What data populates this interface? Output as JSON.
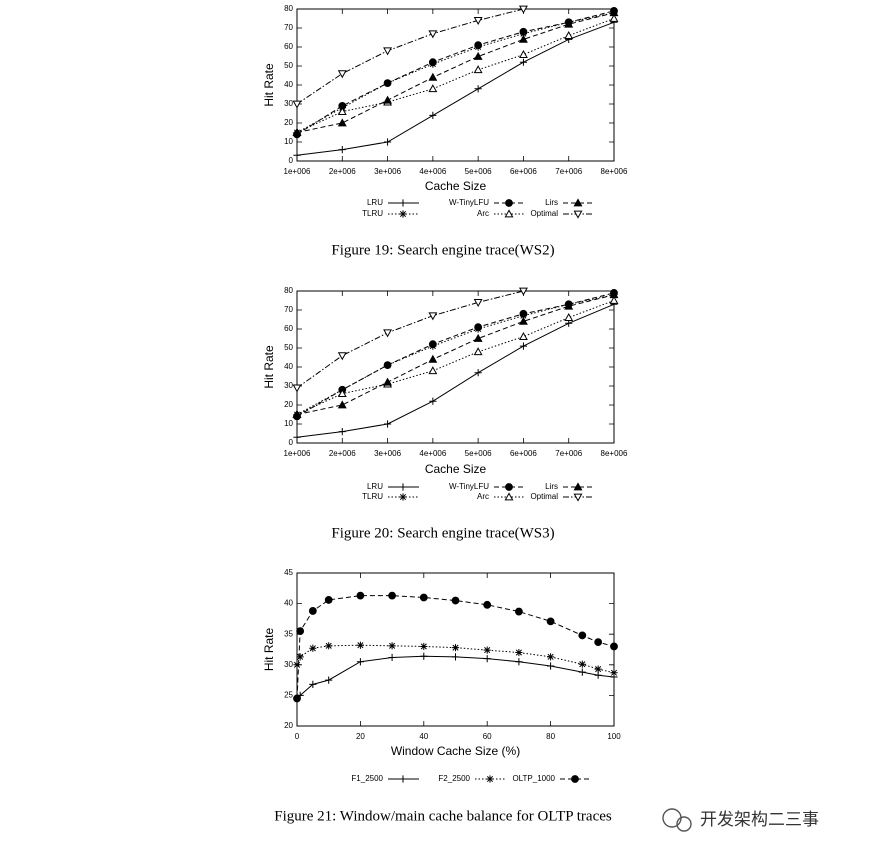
{
  "chart_data": [
    {
      "type": "line",
      "caption": "Figure 19: Search engine trace(WS2)",
      "xlabel": "Cache Size",
      "ylabel": "Hit Rate",
      "x": [
        1000000,
        2000000,
        3000000,
        4000000,
        5000000,
        6000000,
        7000000,
        8000000
      ],
      "xlim": [
        1000000,
        8000000
      ],
      "xticks": [
        {
          "value": 1000000,
          "label": "1e+006"
        },
        {
          "value": 2000000,
          "label": "2e+006"
        },
        {
          "value": 3000000,
          "label": "3e+006"
        },
        {
          "value": 4000000,
          "label": "4e+006"
        },
        {
          "value": 5000000,
          "label": "5e+006"
        },
        {
          "value": 6000000,
          "label": "6e+006"
        },
        {
          "value": 7000000,
          "label": "7e+006"
        },
        {
          "value": 8000000,
          "label": "8e+006"
        }
      ],
      "ylim": [
        0,
        80
      ],
      "yticks": [
        0,
        10,
        20,
        30,
        40,
        50,
        60,
        70,
        80
      ],
      "series": [
        {
          "name": "LRU",
          "color": "#000000",
          "marker": "plus",
          "dash": "solid",
          "values": [
            3,
            6,
            10,
            24,
            38,
            52,
            64,
            73
          ]
        },
        {
          "name": "TLRU",
          "color": "#000000",
          "marker": "star",
          "dash": "dotted",
          "values": [
            15,
            28,
            41,
            51,
            60,
            67,
            73,
            78
          ]
        },
        {
          "name": "W-TinyLFU",
          "color": "#000000",
          "marker": "circle",
          "dash": "dashed",
          "values": [
            14,
            29,
            41,
            52,
            61,
            68,
            73,
            79
          ]
        },
        {
          "name": "Arc",
          "color": "#000000",
          "marker": "triangle-open",
          "dash": "dotted",
          "values": [
            15,
            26,
            31,
            38,
            48,
            56,
            66,
            75
          ]
        },
        {
          "name": "Lirs",
          "color": "#000000",
          "marker": "triangle",
          "dash": "dashed",
          "values": [
            15,
            20,
            32,
            44,
            55,
            64,
            72,
            78
          ]
        },
        {
          "name": "Optimal",
          "color": "#000000",
          "marker": "triangle-down-open",
          "dash": "dashdot",
          "values": [
            30,
            46,
            58,
            67,
            74,
            80,
            null,
            null
          ]
        }
      ]
    },
    {
      "type": "line",
      "caption": "Figure 20: Search engine trace(WS3)",
      "xlabel": "Cache Size",
      "ylabel": "Hit Rate",
      "x": [
        1000000,
        2000000,
        3000000,
        4000000,
        5000000,
        6000000,
        7000000,
        8000000
      ],
      "xlim": [
        1000000,
        8000000
      ],
      "xticks": [
        {
          "value": 1000000,
          "label": "1e+006"
        },
        {
          "value": 2000000,
          "label": "2e+006"
        },
        {
          "value": 3000000,
          "label": "3e+006"
        },
        {
          "value": 4000000,
          "label": "4e+006"
        },
        {
          "value": 5000000,
          "label": "5e+006"
        },
        {
          "value": 6000000,
          "label": "6e+006"
        },
        {
          "value": 7000000,
          "label": "7e+006"
        },
        {
          "value": 8000000,
          "label": "8e+006"
        }
      ],
      "ylim": [
        0,
        80
      ],
      "yticks": [
        0,
        10,
        20,
        30,
        40,
        50,
        60,
        70,
        80
      ],
      "series": [
        {
          "name": "LRU",
          "color": "#000000",
          "marker": "plus",
          "dash": "solid",
          "values": [
            3,
            6,
            10,
            22,
            37,
            51,
            63,
            73
          ]
        },
        {
          "name": "TLRU",
          "color": "#000000",
          "marker": "star",
          "dash": "dotted",
          "values": [
            15,
            28,
            41,
            51,
            60,
            67,
            73,
            78
          ]
        },
        {
          "name": "W-TinyLFU",
          "color": "#000000",
          "marker": "circle",
          "dash": "dashed",
          "values": [
            14,
            28,
            41,
            52,
            61,
            68,
            73,
            79
          ]
        },
        {
          "name": "Arc",
          "color": "#000000",
          "marker": "triangle-open",
          "dash": "dotted",
          "values": [
            15,
            26,
            31,
            38,
            48,
            56,
            66,
            75
          ]
        },
        {
          "name": "Lirs",
          "color": "#000000",
          "marker": "triangle",
          "dash": "dashed",
          "values": [
            15,
            20,
            32,
            44,
            55,
            64,
            72,
            78
          ]
        },
        {
          "name": "Optimal",
          "color": "#000000",
          "marker": "triangle-down-open",
          "dash": "dashdot",
          "values": [
            29,
            46,
            58,
            67,
            74,
            80,
            null,
            null
          ]
        }
      ]
    },
    {
      "type": "line",
      "caption": "Figure 21: Window/main cache balance for OLTP traces",
      "xlabel": "Window Cache Size (%)",
      "ylabel": "Hit Rate",
      "x": [
        0,
        1,
        5,
        10,
        20,
        30,
        40,
        50,
        60,
        70,
        80,
        90,
        95,
        100
      ],
      "xlim": [
        0,
        100
      ],
      "xticks": [
        0,
        20,
        40,
        60,
        80,
        100
      ],
      "ylim": [
        20,
        45
      ],
      "yticks": [
        20,
        25,
        30,
        35,
        40,
        45
      ],
      "series": [
        {
          "name": "F1_2500",
          "color": "#000000",
          "marker": "plus",
          "dash": "solid",
          "values": [
            24.5,
            25,
            26.8,
            27.5,
            30.5,
            31.2,
            31.4,
            31.3,
            31.0,
            30.5,
            29.8,
            28.8,
            28.3,
            28.0
          ]
        },
        {
          "name": "F2_2500",
          "color": "#000000",
          "marker": "star",
          "dash": "dotted",
          "values": [
            30,
            31.3,
            32.7,
            33.1,
            33.2,
            33.1,
            33.0,
            32.8,
            32.4,
            32.0,
            31.3,
            30.1,
            29.3,
            28.7
          ]
        },
        {
          "name": "OLTP_1000",
          "color": "#000000",
          "marker": "circle",
          "dash": "dashed",
          "values": [
            24.5,
            35.5,
            38.8,
            40.6,
            41.3,
            41.3,
            41.0,
            40.5,
            39.8,
            38.7,
            37.1,
            34.8,
            33.7,
            33.0
          ]
        }
      ]
    }
  ],
  "watermark": "开发架构二三事"
}
